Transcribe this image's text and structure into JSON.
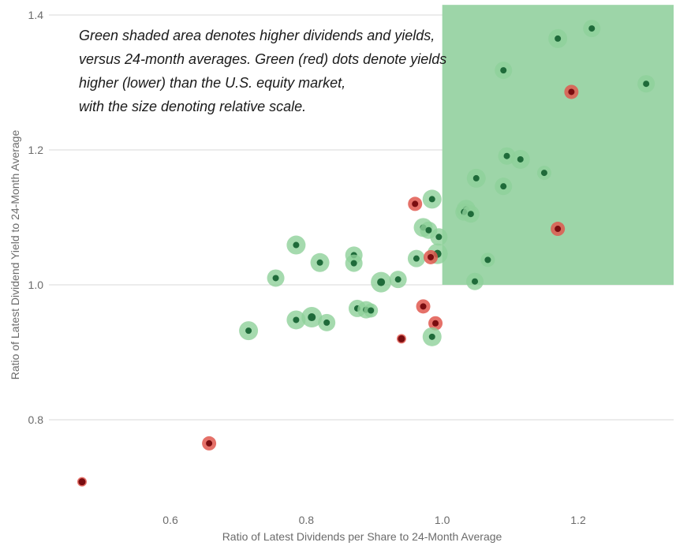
{
  "chart_data": {
    "type": "scatter",
    "title": "",
    "xlabel": "Ratio of Latest Dividends per Share to 24-Month Average",
    "ylabel": "Ratio of Latest Dividend Yield to 24-Month Average",
    "xlim": [
      0.45,
      1.35
    ],
    "ylim": [
      0.65,
      1.42
    ],
    "xticks": [
      "0.6",
      "0.8",
      "1.0",
      "1.2"
    ],
    "yticks": [
      "0.8",
      "1.0",
      "1.2",
      "1.4"
    ],
    "grid": "horizontal",
    "shaded_region": {
      "x": [
        1.0,
        1.35
      ],
      "y": [
        1.0,
        1.415
      ],
      "color": "#9dd5a8"
    },
    "colors": {
      "green_halo": "#8fd19a",
      "green_dot": "#1f6b3a",
      "red_halo": "#e0584f",
      "red_dot": "#7a0d10"
    },
    "annotation": [
      "Green shaded area denotes higher dividends and yields,",
      "versus 24-month averages. Green (red) dots denote yields",
      "higher (lower) than the U.S. equity market,",
      "with the size denoting relative scale."
    ],
    "points": [
      {
        "x": 1.22,
        "y": 1.38,
        "color": "green",
        "size": 2
      },
      {
        "x": 1.17,
        "y": 1.365,
        "color": "green",
        "size": 3
      },
      {
        "x": 1.09,
        "y": 1.318,
        "color": "green",
        "size": 2
      },
      {
        "x": 1.3,
        "y": 1.298,
        "color": "green",
        "size": 2
      },
      {
        "x": 1.19,
        "y": 1.286,
        "color": "red",
        "size": 1
      },
      {
        "x": 1.095,
        "y": 1.191,
        "color": "green",
        "size": 2
      },
      {
        "x": 1.115,
        "y": 1.186,
        "color": "green",
        "size": 3
      },
      {
        "x": 1.15,
        "y": 1.166,
        "color": "green",
        "size": 1
      },
      {
        "x": 1.05,
        "y": 1.158,
        "color": "green",
        "size": 3
      },
      {
        "x": 1.09,
        "y": 1.146,
        "color": "green",
        "size": 2
      },
      {
        "x": 0.985,
        "y": 1.127,
        "color": "green",
        "size": 3
      },
      {
        "x": 0.96,
        "y": 1.12,
        "color": "red",
        "size": 1
      },
      {
        "x": 1.035,
        "y": 1.112,
        "color": "green",
        "size": 3
      },
      {
        "x": 1.032,
        "y": 1.108,
        "color": "green",
        "size": 2
      },
      {
        "x": 1.042,
        "y": 1.105,
        "color": "green",
        "size": 2
      },
      {
        "x": 0.972,
        "y": 1.085,
        "color": "green",
        "size": 3
      },
      {
        "x": 0.98,
        "y": 1.081,
        "color": "green",
        "size": 2
      },
      {
        "x": 1.17,
        "y": 1.083,
        "color": "red",
        "size": 1
      },
      {
        "x": 0.995,
        "y": 1.071,
        "color": "green",
        "size": 2
      },
      {
        "x": 0.785,
        "y": 1.059,
        "color": "green",
        "size": 3
      },
      {
        "x": 0.87,
        "y": 1.044,
        "color": "green",
        "size": 2
      },
      {
        "x": 0.993,
        "y": 1.046,
        "color": "green",
        "size": 4
      },
      {
        "x": 0.962,
        "y": 1.039,
        "color": "green",
        "size": 2
      },
      {
        "x": 0.983,
        "y": 1.041,
        "color": "red",
        "size": 1
      },
      {
        "x": 1.067,
        "y": 1.037,
        "color": "green",
        "size": 1
      },
      {
        "x": 0.82,
        "y": 1.033,
        "color": "green",
        "size": 3
      },
      {
        "x": 0.87,
        "y": 1.032,
        "color": "green",
        "size": 2
      },
      {
        "x": 0.755,
        "y": 1.01,
        "color": "green",
        "size": 2
      },
      {
        "x": 0.935,
        "y": 1.008,
        "color": "green",
        "size": 2
      },
      {
        "x": 1.048,
        "y": 1.005,
        "color": "green",
        "size": 2
      },
      {
        "x": 0.91,
        "y": 1.004,
        "color": "green",
        "size": 4
      },
      {
        "x": 0.972,
        "y": 0.968,
        "color": "red",
        "size": 1
      },
      {
        "x": 0.875,
        "y": 0.965,
        "color": "green",
        "size": 2
      },
      {
        "x": 0.888,
        "y": 0.963,
        "color": "green",
        "size": 2
      },
      {
        "x": 0.895,
        "y": 0.962,
        "color": "green",
        "size": 1
      },
      {
        "x": 0.808,
        "y": 0.952,
        "color": "green",
        "size": 4
      },
      {
        "x": 0.785,
        "y": 0.948,
        "color": "green",
        "size": 3
      },
      {
        "x": 0.83,
        "y": 0.944,
        "color": "green",
        "size": 2
      },
      {
        "x": 0.99,
        "y": 0.943,
        "color": "red",
        "size": 1
      },
      {
        "x": 0.715,
        "y": 0.932,
        "color": "green",
        "size": 3
      },
      {
        "x": 0.985,
        "y": 0.923,
        "color": "green",
        "size": 3
      },
      {
        "x": 0.94,
        "y": 0.92,
        "color": "red",
        "size": 0
      },
      {
        "x": 0.657,
        "y": 0.765,
        "color": "red",
        "size": 1
      },
      {
        "x": 0.47,
        "y": 0.708,
        "color": "red",
        "size": 0
      }
    ]
  }
}
